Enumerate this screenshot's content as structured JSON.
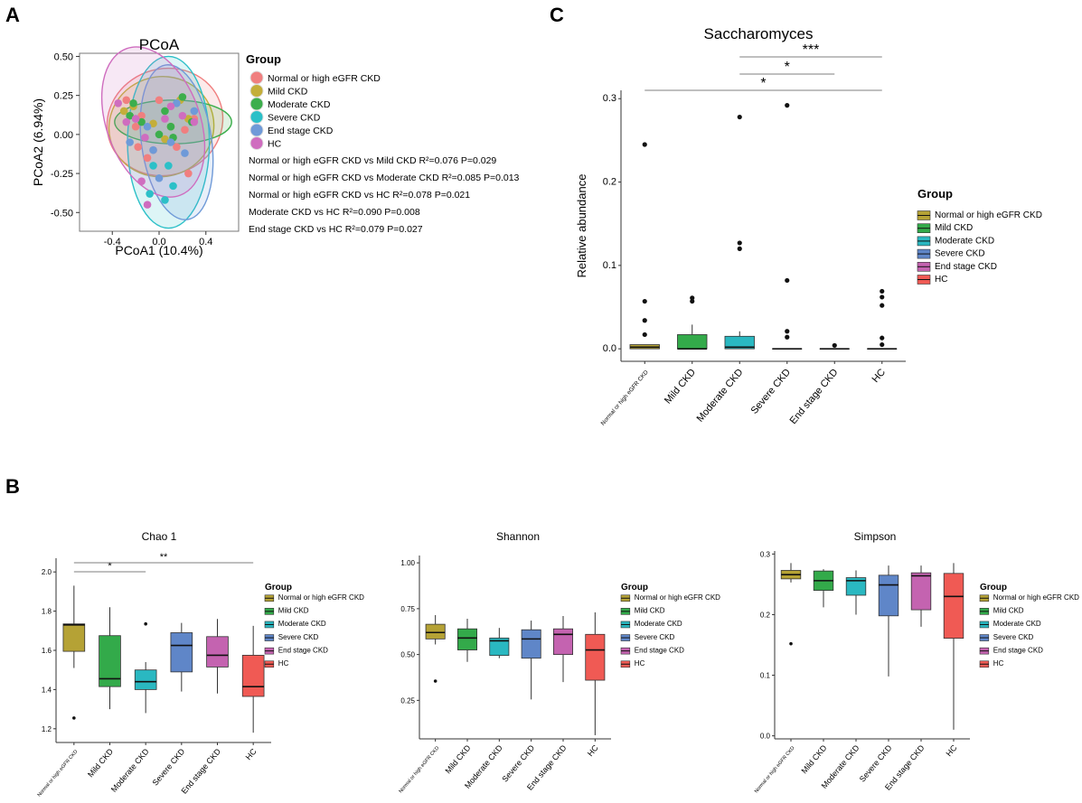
{
  "panel_labels": [
    "A",
    "B",
    "C"
  ],
  "group_names": [
    "Normal or high eGFR CKD",
    "Mild CKD",
    "Moderate CKD",
    "Severe CKD",
    "End stage CKD",
    "HC"
  ],
  "colors": {
    "pcoa": [
      "#f07f7f",
      "#c4ae3a",
      "#3cae4c",
      "#2cc0c8",
      "#6f9ad8",
      "#cf6dbf"
    ],
    "box": [
      "#b5a235",
      "#33aa4a",
      "#2ab8c1",
      "#5f86c8",
      "#c463b0",
      "#f05a54"
    ]
  },
  "legend_title": "Group",
  "chart_data": [
    {
      "id": "pcoa",
      "type": "scatter",
      "title": "PCoA",
      "xlabel": "PCoA1 (10.4%)",
      "ylabel": "PCoA2 (6.94%)",
      "xlim": [
        -0.68,
        0.68
      ],
      "ylim": [
        -0.62,
        0.52
      ],
      "xticks": [
        -0.4,
        0.0,
        0.4
      ],
      "xtick_labels": [
        "-0.4",
        "0.0",
        "0.4"
      ],
      "yticks": [
        0.5,
        0.25,
        0.0,
        -0.25,
        -0.5
      ],
      "ytick_labels": [
        "0.50",
        "0.25",
        "0.00",
        "-0.25",
        "-0.50"
      ],
      "legend": [
        "Normal or high eGFR CKD",
        "Mild CKD",
        "Moderate CKD",
        "Severe CKD",
        "End stage CKD",
        "HC"
      ],
      "stats": [
        "Normal or high eGFR CKD vs Mild CKD  R²=0.076 P=0.029",
        "Normal or high eGFR CKD vs Moderate CKD  R²=0.085 P=0.013",
        "Normal or high eGFR CKD vs HC  R²=0.078 P=0.021",
        "Moderate CKD vs HC  R²=0.090 P=0.008",
        "End stage CKD vs HC  R²=0.079 P=0.027"
      ],
      "ellipses": [
        {
          "cx": 0.05,
          "cy": 0.08,
          "rx": 0.5,
          "ry": 0.34,
          "angle": -20
        },
        {
          "cx": 0.02,
          "cy": 0.05,
          "rx": 0.45,
          "ry": 0.32,
          "angle": -15
        },
        {
          "cx": 0.12,
          "cy": 0.08,
          "rx": 0.5,
          "ry": 0.14,
          "angle": 0
        },
        {
          "cx": 0.08,
          "cy": -0.05,
          "rx": 0.35,
          "ry": 0.55,
          "angle": 0
        },
        {
          "cx": 0.15,
          "cy": -0.05,
          "rx": 0.3,
          "ry": 0.5,
          "angle": -8
        },
        {
          "cx": -0.05,
          "cy": 0.08,
          "rx": 0.4,
          "ry": 0.5,
          "angle": -20
        }
      ],
      "points": [
        [
          [
            -0.28,
            0.22
          ],
          [
            -0.15,
            0.12
          ],
          [
            0.22,
            0.03
          ],
          [
            -0.05,
            -0.1
          ],
          [
            0.15,
            -0.08
          ],
          [
            -0.2,
            0.05
          ],
          [
            0.0,
            0.22
          ],
          [
            0.3,
            0.1
          ],
          [
            -0.1,
            -0.15
          ],
          [
            0.25,
            -0.25
          ],
          [
            -0.18,
            -0.08
          ]
        ],
        [
          [
            -0.22,
            0.18
          ],
          [
            -0.05,
            0.07
          ],
          [
            0.18,
            0.22
          ],
          [
            0.1,
            0.05
          ],
          [
            -0.3,
            0.15
          ],
          [
            0.05,
            -0.03
          ],
          [
            0.25,
            0.1
          ]
        ],
        [
          [
            -0.22,
            0.2
          ],
          [
            0.1,
            0.05
          ],
          [
            0.05,
            0.15
          ],
          [
            0.2,
            0.24
          ],
          [
            -0.15,
            0.08
          ],
          [
            0.12,
            -0.02
          ],
          [
            0.28,
            0.08
          ],
          [
            -0.25,
            0.12
          ],
          [
            0.0,
            0.0
          ]
        ],
        [
          [
            0.08,
            -0.2
          ],
          [
            -0.08,
            -0.38
          ],
          [
            0.05,
            -0.42
          ],
          [
            0.12,
            -0.33
          ],
          [
            -0.05,
            -0.2
          ]
        ],
        [
          [
            -0.05,
            -0.1
          ],
          [
            0.15,
            0.2
          ],
          [
            0.0,
            -0.28
          ],
          [
            0.22,
            -0.12
          ],
          [
            -0.1,
            0.05
          ],
          [
            0.1,
            -0.05
          ],
          [
            -0.25,
            -0.05
          ],
          [
            0.3,
            0.15
          ]
        ],
        [
          [
            -0.35,
            0.2
          ],
          [
            -0.2,
            0.1
          ],
          [
            0.05,
            0.1
          ],
          [
            -0.12,
            -0.02
          ],
          [
            0.3,
            0.08
          ],
          [
            -0.28,
            0.08
          ],
          [
            0.2,
            0.12
          ],
          [
            -0.15,
            -0.3
          ],
          [
            0.1,
            0.18
          ],
          [
            -0.1,
            -0.45
          ]
        ]
      ]
    },
    {
      "id": "saccharomyces",
      "type": "box",
      "title": "Saccharomyces",
      "ylabel": "Relative abundance",
      "categories": [
        "Normal or high eGFR CKD",
        "Mild CKD",
        "Moderate CKD",
        "Severe CKD",
        "End stage CKD",
        "HC"
      ],
      "ylim": [
        -0.015,
        0.31
      ],
      "yticks": [
        0.0,
        0.1,
        0.2,
        0.3
      ],
      "ytick_labels": [
        "0.0",
        "0.1",
        "0.2",
        "0.3"
      ],
      "boxes": [
        {
          "q1": 0.0,
          "median": 0.002,
          "q3": 0.005,
          "lo": 0.0,
          "hi": 0.005,
          "outliers": [
            0.245,
            0.057,
            0.034,
            0.017
          ]
        },
        {
          "q1": 0.0,
          "median": 0.0,
          "q3": 0.017,
          "lo": 0.0,
          "hi": 0.029,
          "outliers": [
            0.061,
            0.057
          ]
        },
        {
          "q1": 0.0,
          "median": 0.002,
          "q3": 0.015,
          "lo": 0.0,
          "hi": 0.021,
          "outliers": [
            0.278,
            0.127,
            0.12
          ]
        },
        {
          "q1": 0.0,
          "median": 0.0,
          "q3": 0.0,
          "lo": 0.0,
          "hi": 0.0,
          "outliers": [
            0.292,
            0.082,
            0.021,
            0.014
          ]
        },
        {
          "q1": 0.0,
          "median": 0.0,
          "q3": 0.0,
          "lo": 0.0,
          "hi": 0.0,
          "outliers": [
            0.004
          ]
        },
        {
          "q1": 0.0,
          "median": 0.0,
          "q3": 0.0,
          "lo": 0.0,
          "hi": 0.0,
          "outliers": [
            0.069,
            0.062,
            0.052,
            0.013,
            0.005
          ]
        }
      ],
      "significance": [
        {
          "from": 2,
          "to": 5,
          "label": "***"
        },
        {
          "from": 2,
          "to": 4,
          "label": "*"
        },
        {
          "from": 0,
          "to": 5,
          "label": "*"
        }
      ]
    },
    {
      "id": "chao1",
      "type": "box",
      "title": "Chao 1",
      "categories": [
        "Normal or high eGFR CKD",
        "Mild CKD",
        "Moderate CKD",
        "Severe CKD",
        "End stage CKD",
        "HC"
      ],
      "ylim": [
        1.13,
        2.07
      ],
      "yticks": [
        1.2,
        1.4,
        1.6,
        1.8,
        2.0
      ],
      "ytick_labels": [
        "1.2",
        "1.4",
        "1.6",
        "1.8",
        "2.0"
      ],
      "boxes": [
        {
          "q1": 1.595,
          "median": 1.73,
          "q3": 1.735,
          "lo": 1.51,
          "hi": 1.93,
          "outliers": [
            1.255
          ]
        },
        {
          "q1": 1.415,
          "median": 1.455,
          "q3": 1.675,
          "lo": 1.3,
          "hi": 1.82,
          "outliers": []
        },
        {
          "q1": 1.4,
          "median": 1.44,
          "q3": 1.5,
          "lo": 1.28,
          "hi": 1.54,
          "outliers": [
            1.735
          ]
        },
        {
          "q1": 1.49,
          "median": 1.625,
          "q3": 1.69,
          "lo": 1.39,
          "hi": 1.74,
          "outliers": []
        },
        {
          "q1": 1.515,
          "median": 1.575,
          "q3": 1.67,
          "lo": 1.38,
          "hi": 1.76,
          "outliers": []
        },
        {
          "q1": 1.365,
          "median": 1.415,
          "q3": 1.575,
          "lo": 1.18,
          "hi": 1.725,
          "outliers": []
        }
      ],
      "significance": [
        {
          "from": 0,
          "to": 2,
          "label": "*"
        },
        {
          "from": 0,
          "to": 5,
          "label": "**"
        }
      ]
    },
    {
      "id": "shannon",
      "type": "box",
      "title": "Shannon",
      "categories": [
        "Normal or high eGFR CKD",
        "Mild CKD",
        "Moderate CKD",
        "Severe CKD",
        "End stage CKD",
        "HC"
      ],
      "ylim": [
        0.04,
        1.04
      ],
      "yticks": [
        0.25,
        0.5,
        0.75,
        1.0
      ],
      "ytick_labels": [
        "0.25",
        "0.50",
        "0.75",
        "1.00"
      ],
      "boxes": [
        {
          "q1": 0.585,
          "median": 0.62,
          "q3": 0.665,
          "lo": 0.555,
          "hi": 0.715,
          "outliers": [
            0.355
          ]
        },
        {
          "q1": 0.525,
          "median": 0.59,
          "q3": 0.64,
          "lo": 0.46,
          "hi": 0.695,
          "outliers": []
        },
        {
          "q1": 0.495,
          "median": 0.575,
          "q3": 0.59,
          "lo": 0.48,
          "hi": 0.645,
          "outliers": []
        },
        {
          "q1": 0.48,
          "median": 0.585,
          "q3": 0.635,
          "lo": 0.255,
          "hi": 0.685,
          "outliers": []
        },
        {
          "q1": 0.5,
          "median": 0.61,
          "q3": 0.64,
          "lo": 0.35,
          "hi": 0.71,
          "outliers": []
        },
        {
          "q1": 0.36,
          "median": 0.525,
          "q3": 0.61,
          "lo": 0.06,
          "hi": 0.73,
          "outliers": []
        }
      ],
      "significance": []
    },
    {
      "id": "simpson",
      "type": "box",
      "title": "Simpson",
      "categories": [
        "Normal or high eGFR CKD",
        "Mild CKD",
        "Moderate CKD",
        "Severe CKD",
        "End stage CKD",
        "HC"
      ],
      "ylim": [
        -0.005,
        0.305
      ],
      "yticks": [
        0.0,
        0.1,
        0.2,
        0.3
      ],
      "ytick_labels": [
        "0.0",
        "0.1",
        "0.2",
        "0.3"
      ],
      "boxes": [
        {
          "q1": 0.259,
          "median": 0.266,
          "q3": 0.273,
          "lo": 0.253,
          "hi": 0.285,
          "outliers": [
            0.152
          ]
        },
        {
          "q1": 0.24,
          "median": 0.256,
          "q3": 0.272,
          "lo": 0.212,
          "hi": 0.275,
          "outliers": []
        },
        {
          "q1": 0.232,
          "median": 0.256,
          "q3": 0.261,
          "lo": 0.2,
          "hi": 0.273,
          "outliers": []
        },
        {
          "q1": 0.198,
          "median": 0.249,
          "q3": 0.265,
          "lo": 0.098,
          "hi": 0.281,
          "outliers": []
        },
        {
          "q1": 0.208,
          "median": 0.264,
          "q3": 0.269,
          "lo": 0.18,
          "hi": 0.281,
          "outliers": []
        },
        {
          "q1": 0.161,
          "median": 0.23,
          "q3": 0.268,
          "lo": 0.01,
          "hi": 0.285,
          "outliers": []
        }
      ],
      "significance": []
    }
  ]
}
